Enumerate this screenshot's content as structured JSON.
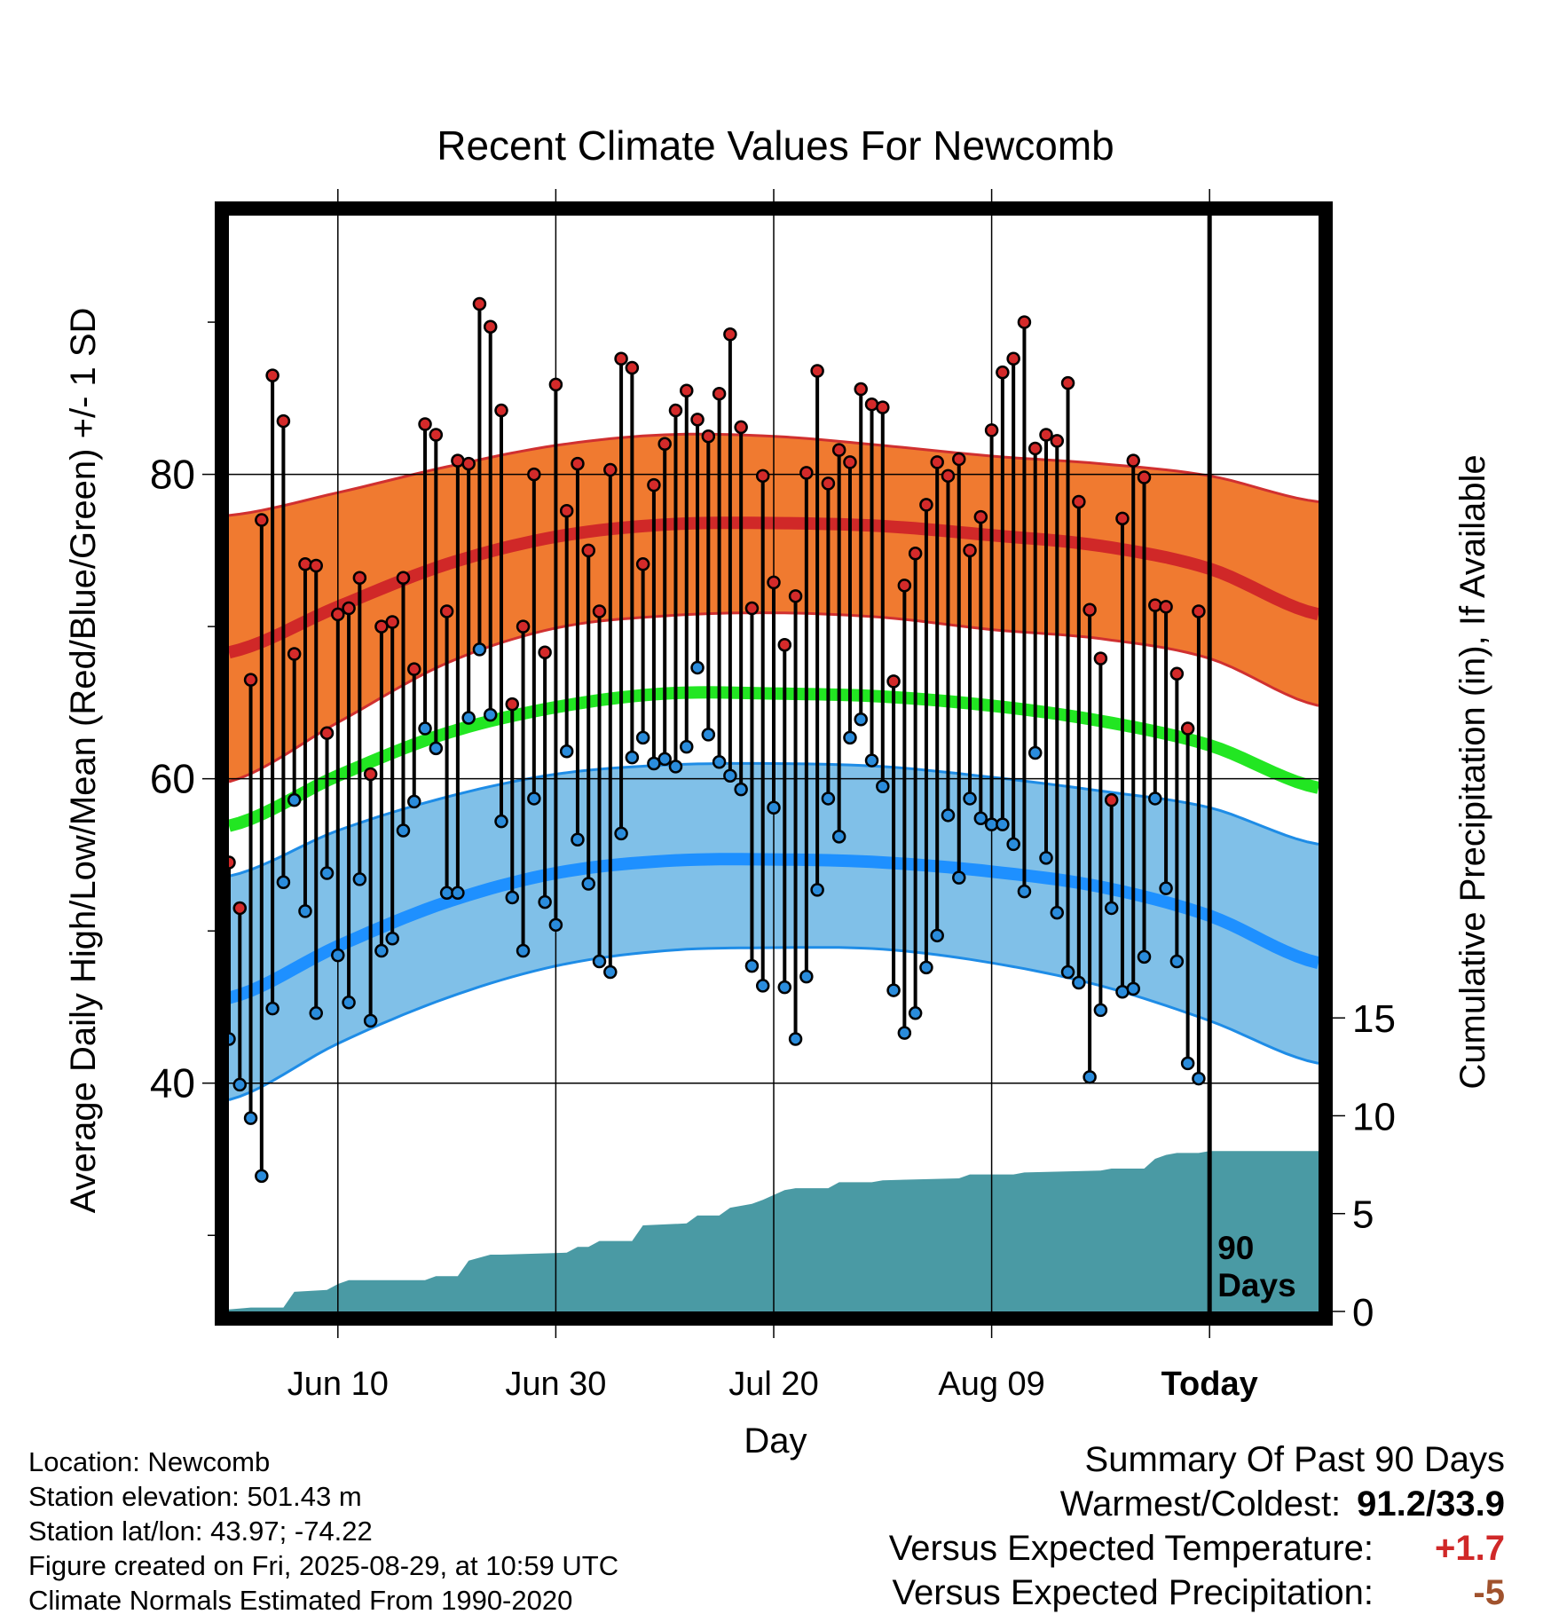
{
  "chart_data": {
    "type": "line",
    "title": "Recent Climate Values For Newcomb",
    "xlabel": "Day",
    "ylabel_left": "Average Daily High/Low/Mean (Red/Blue/Green) +/- 1 SD",
    "ylabel_right": "Cumulative Precipitation (in), If Available",
    "x_range_days": [
      0,
      100
    ],
    "ylim_left": [
      25,
      97
    ],
    "ylim_right": [
      0,
      56
    ],
    "y_ticks_left": [
      40,
      60,
      80
    ],
    "y_ticks_right": [
      0,
      5,
      10,
      15
    ],
    "x_ticks": [
      {
        "day": 10,
        "label": "Jun 10"
      },
      {
        "day": 30,
        "label": "Jun 30"
      },
      {
        "day": 50,
        "label": "Jul 20"
      },
      {
        "day": 70,
        "label": "Aug 09"
      },
      {
        "day": 90,
        "label": "Today"
      }
    ],
    "today_marker": {
      "day": 90,
      "label_line1": "90",
      "label_line2": "Days"
    },
    "normals": {
      "days": [
        0,
        10,
        20,
        30,
        40,
        50,
        60,
        70,
        80,
        90,
        100
      ],
      "high_mean": [
        68.3,
        71.3,
        74.1,
        75.9,
        76.7,
        76.8,
        76.6,
        76.0,
        75.3,
        73.8,
        70.8
      ],
      "high_upper": [
        77.3,
        78.8,
        80.5,
        81.9,
        82.6,
        82.5,
        81.9,
        81.2,
        80.7,
        79.9,
        78.2
      ],
      "high_lower": [
        59.8,
        63.7,
        67.6,
        69.9,
        70.7,
        70.9,
        70.6,
        69.8,
        69.2,
        67.9,
        64.8
      ],
      "mean": [
        56.9,
        60.2,
        63.0,
        64.7,
        65.6,
        65.6,
        65.4,
        64.8,
        63.8,
        62.2,
        59.4
      ],
      "low_mean": [
        45.6,
        49.0,
        51.9,
        53.8,
        54.6,
        54.7,
        54.5,
        53.9,
        52.9,
        51.0,
        47.9
      ],
      "low_upper": [
        53.6,
        56.6,
        58.8,
        60.3,
        60.9,
        61.0,
        60.8,
        60.1,
        59.2,
        58.1,
        55.7
      ],
      "low_lower": [
        38.9,
        42.6,
        45.6,
        47.7,
        48.7,
        48.9,
        48.8,
        47.9,
        46.4,
        44.1,
        41.3
      ]
    },
    "series": [
      {
        "name": "High",
        "values": [
          54.5,
          51.5,
          66.5,
          77.0,
          86.5,
          83.5,
          68.2,
          74.1,
          74.0,
          63.0,
          70.8,
          71.2,
          73.2,
          60.3,
          70.0,
          70.3,
          73.2,
          67.2,
          83.3,
          82.6,
          71.0,
          80.9,
          80.7,
          91.2,
          89.7,
          84.2,
          64.9,
          70.0,
          80.0,
          68.3,
          85.9,
          77.6,
          80.7,
          75.0,
          71.0,
          80.3,
          87.6,
          87.0,
          74.1,
          79.3,
          82.0,
          84.2,
          85.5,
          83.6,
          82.5,
          85.3,
          89.2,
          83.1,
          71.2,
          79.9,
          72.9,
          68.8,
          72.0,
          80.1,
          86.8,
          79.4,
          81.6,
          80.8,
          85.6,
          84.6,
          84.4,
          66.4,
          72.7,
          74.8,
          78.0,
          80.8,
          79.9,
          81.0,
          75.0,
          77.2,
          82.9,
          86.7,
          87.6,
          90.0,
          81.7,
          82.6,
          82.2,
          86.0,
          78.2,
          71.1,
          67.9,
          58.6,
          77.1,
          80.9,
          79.8,
          71.4,
          71.3,
          66.9,
          63.3,
          71.0
        ]
      },
      {
        "name": "Low",
        "values": [
          42.9,
          39.9,
          37.7,
          33.9,
          44.9,
          53.2,
          58.6,
          51.3,
          44.6,
          53.8,
          48.4,
          45.3,
          53.4,
          44.1,
          48.7,
          49.5,
          56.6,
          58.5,
          63.3,
          62.0,
          52.5,
          52.5,
          64.0,
          68.5,
          64.2,
          57.2,
          52.2,
          48.7,
          58.7,
          51.9,
          50.4,
          61.8,
          56.0,
          53.1,
          48.0,
          47.3,
          56.4,
          61.4,
          62.7,
          61.0,
          61.3,
          60.8,
          62.1,
          67.3,
          62.9,
          61.1,
          60.2,
          59.3,
          47.7,
          46.4,
          58.1,
          46.3,
          42.9,
          47.0,
          52.7,
          58.7,
          56.2,
          62.7,
          63.9,
          61.2,
          59.5,
          46.1,
          43.3,
          44.6,
          47.6,
          49.7,
          57.6,
          53.5,
          58.7,
          57.4,
          57.0,
          57.0,
          55.7,
          52.6,
          61.7,
          54.8,
          51.2,
          47.3,
          46.6,
          40.4,
          44.8,
          51.5,
          46.0,
          46.2,
          48.3,
          58.7,
          52.8,
          48.0,
          41.3,
          40.3
        ]
      }
    ],
    "precipitation_cumulative": {
      "days": [
        0,
        2,
        5,
        6,
        9,
        10,
        11,
        18,
        19,
        21,
        22,
        24,
        25,
        31,
        32,
        33,
        34,
        37,
        38,
        42,
        43,
        45,
        46,
        48,
        49,
        51,
        52,
        55,
        56,
        59,
        60,
        67,
        68,
        72,
        73,
        80,
        81,
        84,
        85,
        86,
        87,
        89,
        90,
        100
      ],
      "values": [
        0.1,
        0.2,
        0.2,
        1.0,
        1.1,
        1.4,
        1.6,
        1.6,
        1.8,
        1.8,
        2.6,
        2.9,
        2.9,
        3.0,
        3.3,
        3.3,
        3.6,
        3.6,
        4.4,
        4.5,
        4.9,
        4.9,
        5.3,
        5.5,
        5.7,
        6.2,
        6.3,
        6.3,
        6.6,
        6.6,
        6.7,
        6.8,
        7.0,
        7.0,
        7.1,
        7.2,
        7.3,
        7.3,
        7.8,
        8.0,
        8.1,
        8.1,
        8.2,
        8.2
      ]
    },
    "colors": {
      "high_band": "#f07a30",
      "high_line": "#d02828",
      "high_band_edge": "#d03030",
      "mean_line": "#22e622",
      "low_band": "#80c0e8",
      "low_line": "#1e90ff",
      "low_band_edge": "#1e8ce6",
      "precip_fill": "#4a9aa4",
      "high_dot": "#d42a2a",
      "low_dot": "#2a8cdc"
    }
  },
  "footer": {
    "location": "Location: Newcomb",
    "elevation": "Station elevation: 501.43 m",
    "latlon": "Station lat/lon: 43.97; -74.22",
    "created": "Figure created on Fri, 2025-08-29, at 10:59 UTC",
    "normals": "Climate Normals Estimated From 1990-2020"
  },
  "summary": {
    "title": "Summary Of Past 90 Days",
    "warmest_label": "Warmest/Coldest:",
    "warmest_value": "91.2/33.9",
    "temp_label": "Versus Expected Temperature:",
    "temp_value": "+1.7",
    "temp_color": "#d02828",
    "precip_label": "Versus Expected Precipitation:",
    "precip_value": "-5",
    "precip_color": "#a0522d"
  }
}
